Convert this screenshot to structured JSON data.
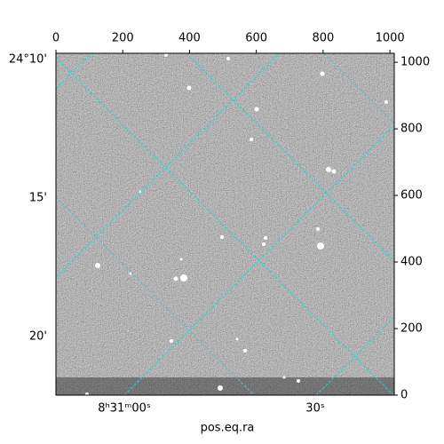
{
  "chart_data": {
    "type": "image",
    "xlabel": "pos.eq.ra",
    "xlim": [
      0,
      1013
    ],
    "ylim": [
      0,
      1027
    ],
    "xticks": [
      0,
      200,
      400,
      600,
      800,
      1000
    ],
    "yticks": [
      0,
      200,
      400,
      600,
      800,
      1000
    ],
    "ra_tick_labels": [
      "8ʰ31ᵐ00ˢ",
      "30ˢ"
    ],
    "dec_tick_labels": [
      "24°10'",
      "15'",
      "20'"
    ],
    "grid_color": "#2fd3d3"
  }
}
